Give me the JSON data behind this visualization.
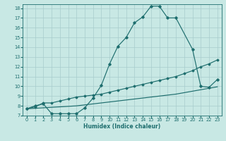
{
  "xlabel": "Humidex (Indice chaleur)",
  "xlim": [
    -0.5,
    23.5
  ],
  "ylim": [
    7,
    18.4
  ],
  "xticks": [
    0,
    1,
    2,
    3,
    4,
    5,
    6,
    7,
    8,
    9,
    10,
    11,
    12,
    13,
    14,
    15,
    16,
    17,
    18,
    19,
    20,
    21,
    22,
    23
  ],
  "yticks": [
    7,
    8,
    9,
    10,
    11,
    12,
    13,
    14,
    15,
    16,
    17,
    18
  ],
  "bg_color": "#c8e8e4",
  "line_color": "#1e6e6e",
  "grid_color": "#a8cccc",
  "line1_x": [
    0,
    1,
    2,
    3,
    4,
    5,
    6,
    7,
    8,
    9,
    10,
    11,
    12,
    13,
    14,
    15,
    16,
    17,
    18,
    20,
    21,
    22,
    23
  ],
  "line1_y": [
    7.7,
    8.0,
    8.2,
    7.2,
    7.2,
    7.2,
    7.2,
    7.8,
    8.8,
    10.1,
    12.3,
    14.1,
    15.0,
    16.5,
    17.1,
    18.2,
    18.2,
    17.0,
    17.0,
    13.8,
    10.0,
    9.9,
    10.7
  ],
  "line2_x": [
    0,
    1,
    2,
    3,
    4,
    5,
    6,
    7,
    8,
    9,
    10,
    11,
    12,
    13,
    14,
    15,
    16,
    17,
    18,
    19,
    20,
    21,
    22,
    23
  ],
  "line2_y": [
    7.7,
    7.9,
    8.3,
    8.3,
    8.5,
    8.7,
    8.9,
    9.0,
    9.1,
    9.2,
    9.4,
    9.6,
    9.8,
    10.0,
    10.2,
    10.4,
    10.6,
    10.8,
    11.0,
    11.3,
    11.6,
    12.0,
    12.3,
    12.7
  ],
  "line3_x": [
    0,
    1,
    2,
    3,
    4,
    5,
    6,
    7,
    8,
    9,
    10,
    11,
    12,
    13,
    14,
    15,
    16,
    17,
    18,
    19,
    20,
    21,
    22,
    23
  ],
  "line3_y": [
    7.7,
    7.75,
    7.8,
    7.85,
    7.9,
    7.95,
    8.0,
    8.1,
    8.2,
    8.3,
    8.4,
    8.5,
    8.6,
    8.7,
    8.8,
    8.9,
    9.0,
    9.1,
    9.2,
    9.35,
    9.5,
    9.65,
    9.8,
    9.95
  ]
}
